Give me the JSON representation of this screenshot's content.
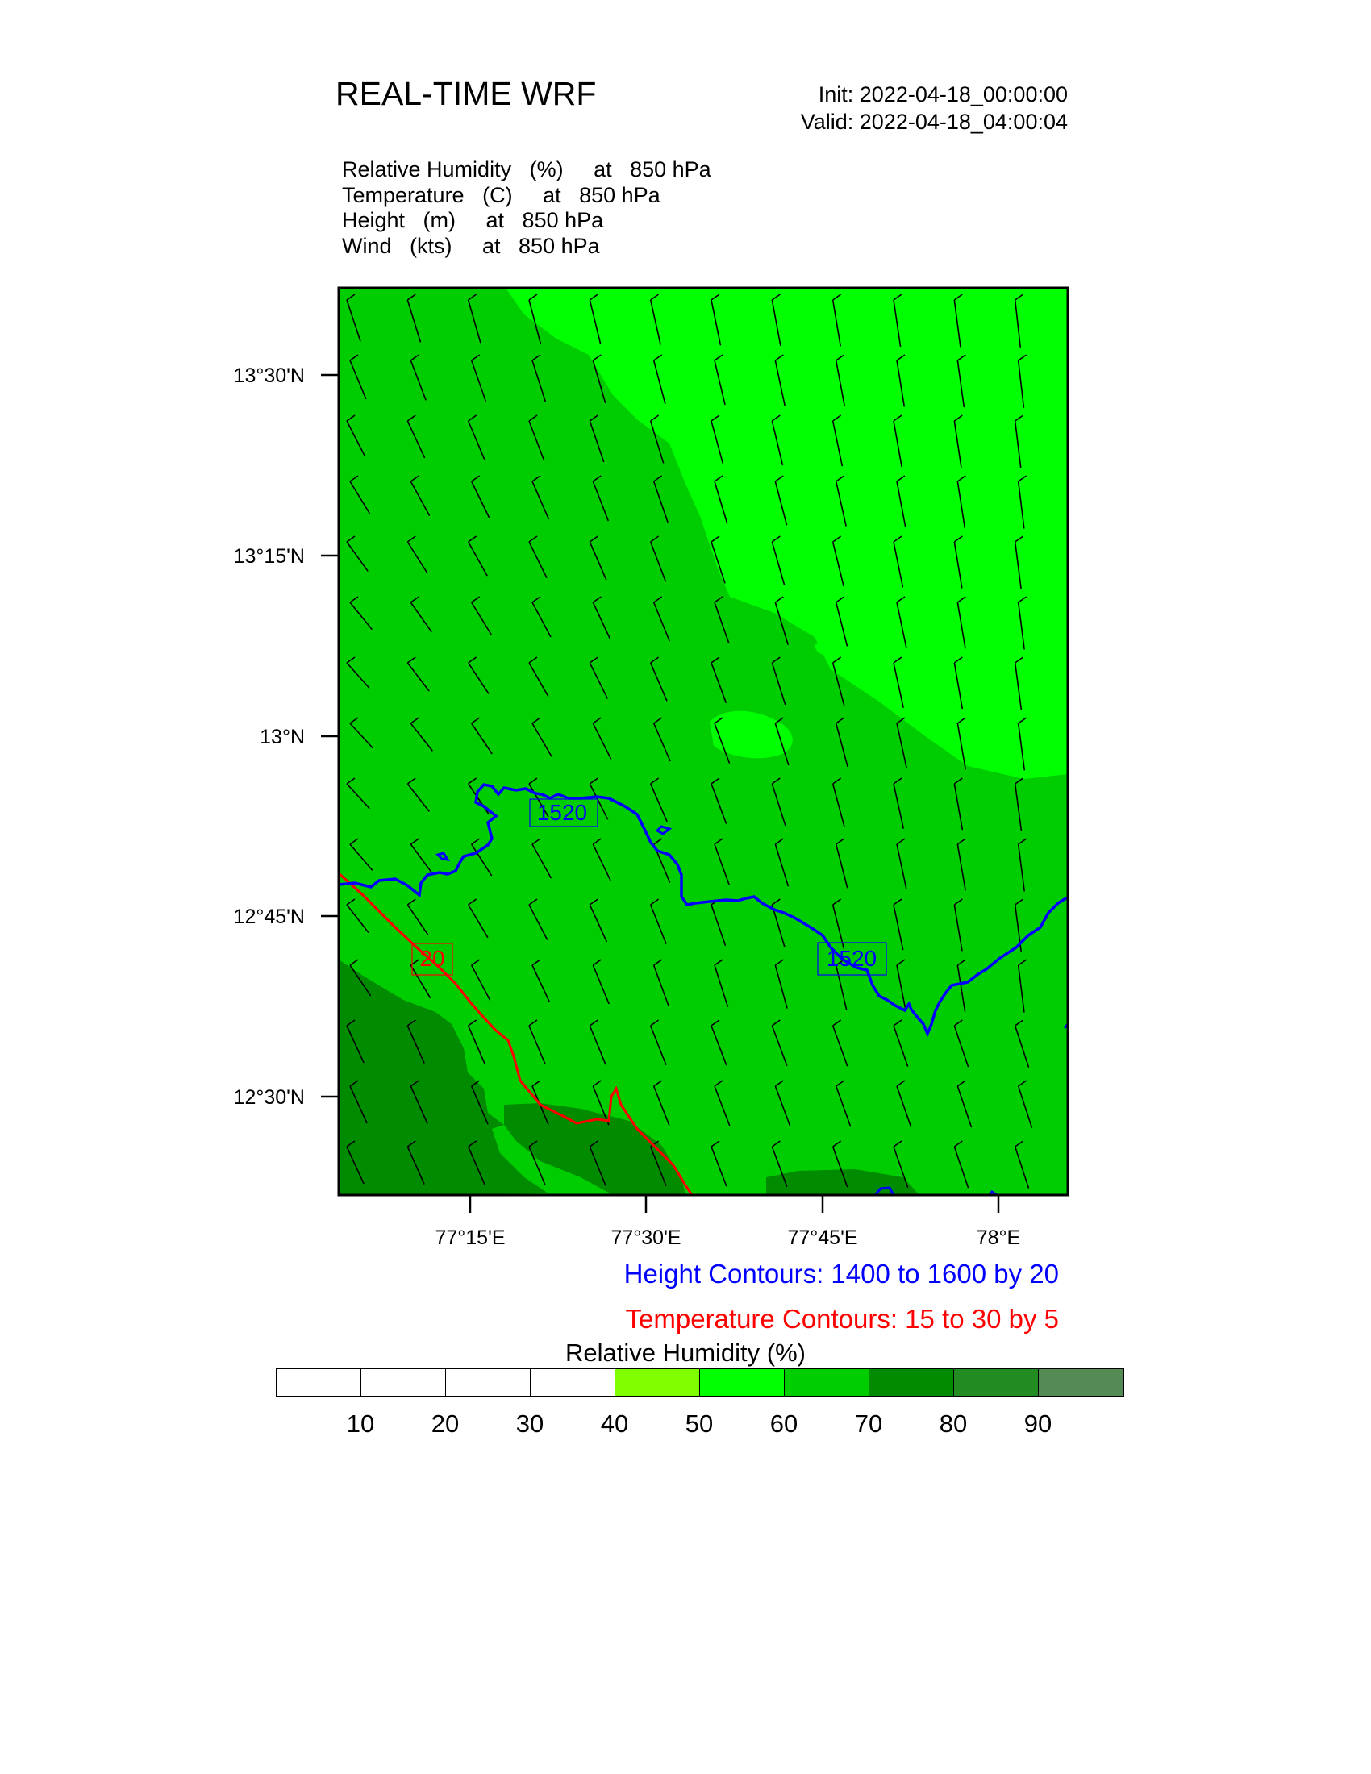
{
  "header": {
    "title": "REAL-TIME WRF",
    "init": "Init: 2022-04-18_00:00:00",
    "valid": "Valid: 2022-04-18_04:00:04"
  },
  "fields": [
    "Relative Humidity   (%)     at   850 hPa",
    "Temperature   (C)     at   850 hPa",
    "Height   (m)     at   850 hPa",
    "Wind   (kts)     at   850 hPa"
  ],
  "axes": {
    "lat_labels": [
      "13°30'N",
      "13°15'N",
      "13°N",
      "12°45'N",
      "12°30'N"
    ],
    "lon_labels": [
      "77°15'E",
      "77°30'E",
      "77°45'E",
      "78°E"
    ]
  },
  "map": {
    "height_contour_label": "1520",
    "temperature_contour_label": "20",
    "colors": {
      "rh_50_60": "#00ff00",
      "rh_60_70": "#00cd00",
      "rh_70_80": "#008b00",
      "height_contour": "#0000ff",
      "temperature_contour": "#ff0000",
      "wind_barb": "#000000"
    }
  },
  "notes": {
    "height": "Height Contours: 1400 to 1600 by 20",
    "temperature": "Temperature Contours: 15 to 30 by 5"
  },
  "legend": {
    "title": "Relative Humidity  (%)",
    "colors": [
      "#ffffff",
      "#ffffff",
      "#ffffff",
      "#ffffff",
      "#7fff00",
      "#00ff00",
      "#00cd00",
      "#008b00",
      "#228b22",
      "#548b54"
    ],
    "labels": [
      "10",
      "20",
      "30",
      "40",
      "50",
      "60",
      "70",
      "80",
      "90"
    ]
  }
}
